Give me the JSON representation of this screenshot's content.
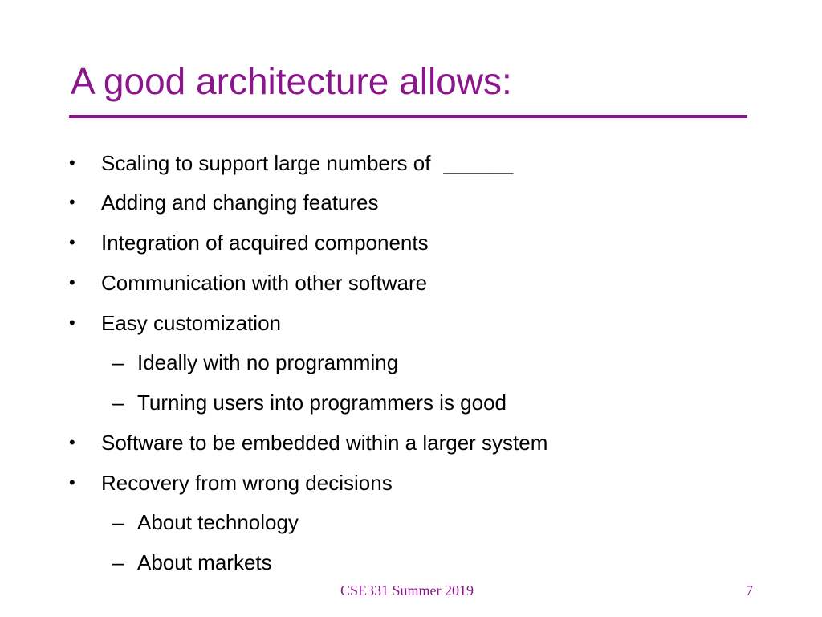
{
  "slide": {
    "title": "A good architecture allows:",
    "bullets": [
      {
        "marker": "•",
        "text": "Scaling to support large numbers of",
        "blank": "______"
      },
      {
        "marker": "•",
        "text": "Adding and changing features"
      },
      {
        "marker": "•",
        "text": "Integration of acquired components"
      },
      {
        "marker": "•",
        "text": "Communication with other software"
      },
      {
        "marker": "•",
        "text": "Easy customization"
      },
      {
        "marker": "–",
        "text": "Ideally with no programming"
      },
      {
        "marker": "–",
        "text": "Turning users into programmers is good"
      },
      {
        "marker": "•",
        "text": "Software to be embedded within a larger system"
      },
      {
        "marker": "•",
        "text": "Recovery from wrong decisions"
      },
      {
        "marker": "–",
        "text": "About technology"
      },
      {
        "marker": "–",
        "text": "About markets"
      }
    ]
  },
  "footer": {
    "course": "CSE331 Summer 2019",
    "page_number": "7"
  },
  "colors": {
    "accent": "#8b158c",
    "text": "#000000",
    "background": "#ffffff"
  }
}
